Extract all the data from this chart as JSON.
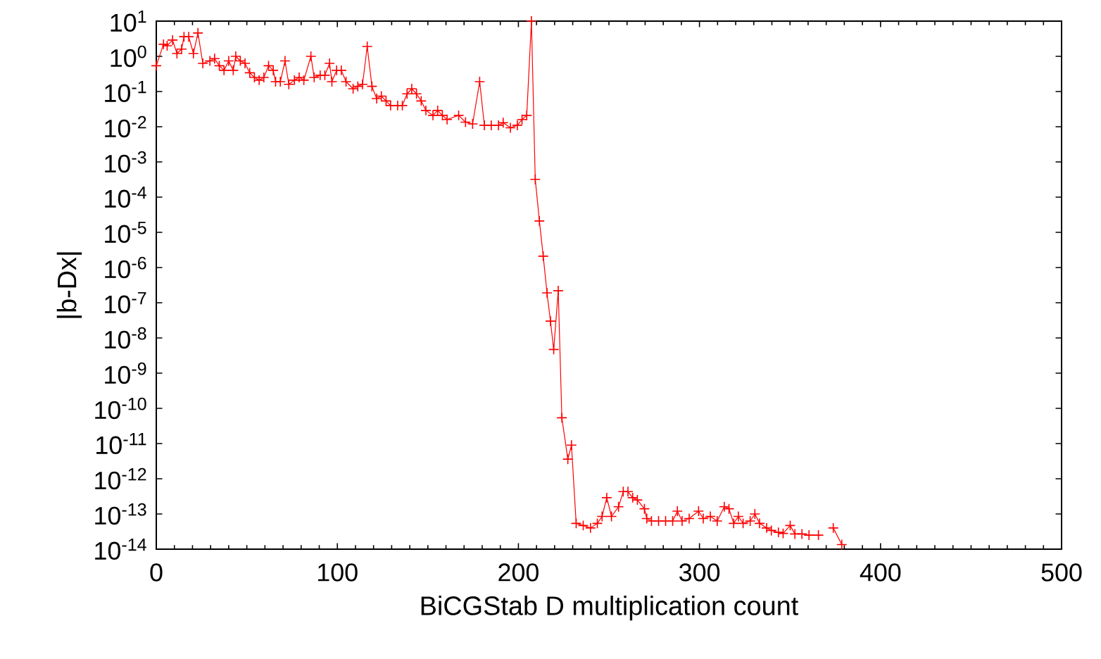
{
  "chart_data": {
    "type": "line",
    "xlabel": "BiCGStab D multiplication count",
    "ylabel": "|b-Dx|",
    "x": [
      0,
      4,
      6,
      9,
      11.4,
      14,
      15.3,
      17.9,
      20.5,
      23,
      25.7,
      29.6,
      32.2,
      34.8,
      37.4,
      40,
      42.5,
      43.9,
      46.4,
      49,
      51.6,
      54.2,
      56.8,
      59.4,
      62,
      64.6,
      65.9,
      68.5,
      71.1,
      73.2,
      76.3,
      78.9,
      81.5,
      85.4,
      87.2,
      90.5,
      93.1,
      95.7,
      97,
      99.6,
      102.2,
      104.8,
      108.7,
      111.3,
      113.9,
      116.5,
      119.1,
      121.7,
      124.3,
      126.9,
      129.4,
      133.3,
      135.9,
      138.5,
      141.1,
      143.7,
      146.3,
      148.9,
      152.8,
      155.4,
      158,
      160.6,
      167,
      170.8,
      174.7,
      178.6,
      181.2,
      185,
      189,
      191.6,
      195.6,
      199.4,
      202,
      204.6,
      207.2,
      209.3,
      211.6,
      213.7,
      215.8,
      217.7,
      219.5,
      222,
      224,
      227.3,
      229.3,
      231.9,
      235.8,
      239.8,
      243.6,
      246.2,
      248.8,
      251.4,
      255.3,
      257.9,
      260.5,
      263.1,
      265.7,
      269.6,
      270.9,
      273.5,
      277.4,
      281.3,
      285.2,
      287.8,
      290.4,
      294.3,
      299.5,
      302.1,
      306,
      309.8,
      313.7,
      316.3,
      318.9,
      321.5,
      324.1,
      328,
      330.6,
      333.2,
      337.1,
      339.7,
      343.6,
      346.2,
      350.1,
      352.7,
      356.6,
      360.5,
      365.7,
      369.5,
      373.9,
      378.6
    ],
    "values": [
      0.54,
      2.2,
      2.0,
      2.9,
      1.2,
      1.6,
      3.6,
      3.6,
      1.2,
      4.6,
      0.63,
      0.74,
      0.86,
      0.54,
      0.4,
      0.74,
      0.4,
      1.0,
      0.74,
      0.63,
      0.34,
      0.25,
      0.21,
      0.25,
      0.54,
      0.4,
      0.19,
      0.19,
      0.74,
      0.16,
      0.21,
      0.25,
      0.21,
      1.0,
      0.25,
      0.29,
      0.29,
      0.63,
      0.19,
      0.4,
      0.4,
      0.19,
      0.12,
      0.14,
      0.16,
      1.9,
      0.14,
      0.063,
      0.074,
      0.054,
      0.04,
      0.04,
      0.04,
      0.086,
      0.12,
      0.086,
      0.054,
      0.029,
      0.021,
      0.029,
      0.021,
      0.016,
      0.021,
      0.0135,
      0.012,
      0.19,
      0.011,
      0.011,
      0.011,
      0.013,
      0.0093,
      0.011,
      0.016,
      0.021,
      10,
      0.00032,
      2.1e-05,
      2.1e-06,
      1.9e-07,
      3e-08,
      4.7e-09,
      2.2e-07,
      5.4e-11,
      3.6e-12,
      9e-12,
      5.4e-14,
      4.7e-14,
      4e-14,
      5.4e-14,
      8.5e-14,
      2.9e-13,
      8.5e-14,
      1.6e-13,
      4.3e-13,
      4.3e-13,
      2.9e-13,
      2.5e-13,
      1.4e-13,
      7.4e-14,
      6.3e-14,
      6.3e-14,
      6.3e-14,
      6.3e-14,
      1.2e-13,
      6.3e-14,
      7.4e-14,
      1.2e-13,
      7.4e-14,
      8.5e-14,
      6.3e-14,
      1.6e-13,
      1.4e-13,
      5.4e-14,
      8.5e-14,
      5.4e-14,
      6.3e-14,
      1e-13,
      5.4e-14,
      4e-14,
      3.4e-14,
      3e-14,
      2.8e-14,
      4.7e-14,
      2.7e-14,
      2.7e-14,
      2.5e-14,
      2.5e-14,
      null,
      4e-14,
      1.35e-14
    ],
    "color": "#ff0000",
    "marker": "cross",
    "line_style": "solid",
    "log": "y",
    "xlim": [
      0,
      500
    ],
    "xticks": [
      0,
      100,
      200,
      300,
      400,
      500
    ],
    "ylim": [
      1e-14,
      10
    ],
    "yticks": [
      {
        "value": 10,
        "label": "10$^{1}$"
      },
      {
        "value": 1,
        "label": "10$^{0}$"
      },
      {
        "value": 0.1,
        "label": "10$^{-1}$"
      },
      {
        "value": 0.01,
        "label": "10$^{-2}$"
      },
      {
        "value": 0.001,
        "label": "10$^{-3}$"
      },
      {
        "value": 0.0001,
        "label": "10$^{-4}$"
      },
      {
        "value": 1e-05,
        "label": "10$^{-5}$"
      },
      {
        "value": 1e-06,
        "label": "10$^{-6}$"
      },
      {
        "value": 1e-07,
        "label": "10$^{-7}$"
      },
      {
        "value": 1e-08,
        "label": "10$^{-8}$"
      },
      {
        "value": 1e-09,
        "label": "10$^{-9}$"
      },
      {
        "value": 1e-10,
        "label": "10$^{-10}$"
      },
      {
        "value": 1e-11,
        "label": "10$^{-11}$"
      },
      {
        "value": 1e-12,
        "label": "10$^{-12}$"
      },
      {
        "value": 1e-13,
        "label": "10$^{-13}$"
      },
      {
        "value": 1e-14,
        "label": "10$^{-14}$"
      }
    ]
  }
}
